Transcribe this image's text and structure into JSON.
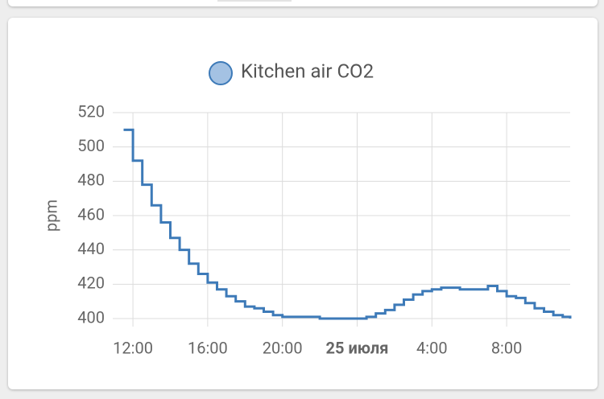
{
  "chart_data": {
    "type": "line",
    "legend": "Kitchen air CO2",
    "ylabel": "ppm",
    "color": "#3d7ab8",
    "legend_fill": "#a4c2e3",
    "step": true,
    "grid": true,
    "x": [
      11.5,
      12.0,
      12.5,
      13.0,
      13.5,
      14.0,
      14.5,
      15.0,
      15.5,
      16.0,
      16.5,
      17.0,
      17.5,
      18.0,
      18.5,
      19.0,
      19.5,
      20.0,
      20.5,
      21.0,
      22.0,
      23.0,
      24.0,
      24.5,
      25.0,
      25.5,
      26.0,
      26.5,
      27.0,
      27.5,
      28.0,
      28.5,
      29.0,
      29.5,
      30.0,
      30.5,
      31.0,
      31.5,
      32.0,
      32.5,
      33.0,
      33.5,
      34.0,
      34.5,
      35.0,
      35.4
    ],
    "series": [
      {
        "name": "Kitchen air CO2",
        "values": [
          510,
          492,
          478,
          466,
          456,
          447,
          440,
          432,
          426,
          421,
          417,
          413,
          410,
          407,
          406,
          404,
          402,
          401,
          401,
          401,
          400,
          400,
          400,
          401,
          403,
          405,
          408,
          411,
          414,
          416,
          417,
          418,
          418,
          417,
          417,
          417,
          419,
          416,
          413,
          412,
          409,
          406,
          404,
          402,
          401,
          400
        ]
      }
    ],
    "xlim": [
      11.35,
      35.4
    ],
    "xticks": [
      {
        "value": 12,
        "label": "12:00"
      },
      {
        "value": 16,
        "label": "16:00"
      },
      {
        "value": 20,
        "label": "20:00"
      },
      {
        "value": 24,
        "label": "25 июля"
      },
      {
        "value": 28,
        "label": "4:00"
      },
      {
        "value": 32,
        "label": "8:00"
      }
    ],
    "ylim": [
      400,
      520
    ],
    "yticks": [
      400,
      420,
      440,
      460,
      480,
      500,
      520
    ]
  }
}
